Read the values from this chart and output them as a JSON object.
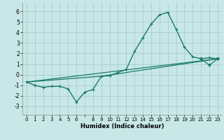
{
  "xlabel": "Humidex (Indice chaleur)",
  "background_color": "#c8e8e8",
  "grid_color": "#aacccc",
  "line_color": "#1a7a6a",
  "xlim": [
    -0.5,
    23.5
  ],
  "ylim": [
    -3.8,
    6.8
  ],
  "yticks": [
    -3,
    -2,
    -1,
    0,
    1,
    2,
    3,
    4,
    5,
    6
  ],
  "series1_x": [
    0,
    1,
    2,
    3,
    4,
    5,
    6,
    7,
    8,
    9,
    10,
    11,
    12,
    13,
    14,
    15,
    16,
    17,
    18,
    19,
    20,
    21,
    22,
    23
  ],
  "series1_y": [
    -0.7,
    -1.0,
    -1.2,
    -1.1,
    -1.1,
    -1.35,
    -2.6,
    -1.65,
    -1.4,
    -0.15,
    -0.1,
    0.2,
    0.5,
    2.2,
    3.5,
    4.8,
    5.65,
    5.9,
    4.3,
    2.6,
    1.7,
    1.5,
    1.6,
    1.5
  ],
  "series2_x": [
    0,
    23
  ],
  "series2_y": [
    -0.7,
    1.5
  ],
  "series3_x": [
    0,
    9,
    23
  ],
  "series3_y": [
    -0.7,
    -0.15,
    1.5
  ],
  "series4_x": [
    21,
    22,
    23
  ],
  "series4_y": [
    1.5,
    0.9,
    1.5
  ]
}
